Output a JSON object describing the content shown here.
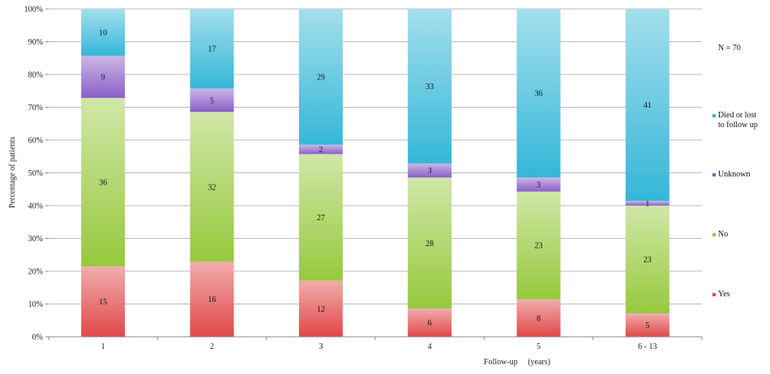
{
  "chart_data": {
    "type": "bar",
    "stacked": true,
    "percent": true,
    "categories": [
      "1",
      "2",
      "3",
      "4",
      "5",
      "6 - 13"
    ],
    "series": [
      {
        "name": "Yes",
        "values": [
          15,
          16,
          12,
          6,
          8,
          5
        ],
        "color": "#e04848"
      },
      {
        "name": "No",
        "values": [
          36,
          32,
          27,
          28,
          23,
          23
        ],
        "color": "#96c93d"
      },
      {
        "name": "Unknown",
        "values": [
          9,
          5,
          2,
          3,
          3,
          1
        ],
        "color": "#8a5fc8"
      },
      {
        "name": "Died or lost\nto follow up",
        "values": [
          10,
          17,
          29,
          33,
          36,
          41
        ],
        "color": "#34b7d8"
      }
    ],
    "xlabel": "Follow-up     (years)",
    "ylabel": "Percentage of patients",
    "yticks": [
      "0%",
      "10%",
      "20%",
      "30%",
      "40%",
      "50%",
      "60%",
      "70%",
      "80%",
      "90%",
      "100%"
    ],
    "ylim": [
      0,
      100
    ],
    "grid": true,
    "legend_position": "right",
    "annotation": "N = 70"
  }
}
